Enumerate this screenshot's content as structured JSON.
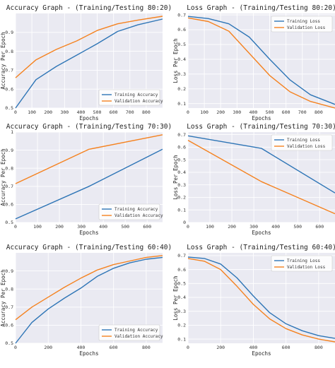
{
  "colors": {
    "training": "#2e75b6",
    "validation": "#f5821f",
    "panel_bg": "#eaeaf2",
    "grid": "#ffffff"
  },
  "chart_data": [
    {
      "type": "line",
      "title": "Accuracy Graph - (Training/Testing 80:20)",
      "xlabel": "Epochs",
      "ylabel": "Accuracy Per Epoch",
      "xlim": [
        0,
        900
      ],
      "ylim": [
        0.5,
        1.0
      ],
      "xticks": [
        0,
        100,
        200,
        300,
        400,
        500,
        600,
        700,
        800
      ],
      "yticks": [
        0.5,
        0.6,
        0.7,
        0.8,
        0.9
      ],
      "legend": "lower-right",
      "series": [
        {
          "name": "Training Accuracy",
          "color": "#2e75b6",
          "x": [
            0,
            125,
            250,
            375,
            500,
            625,
            750,
            900
          ],
          "y": [
            0.5,
            0.65,
            0.72,
            0.78,
            0.84,
            0.905,
            0.94,
            0.97
          ]
        },
        {
          "name": "Validation Accuracy",
          "color": "#f5821f",
          "x": [
            0,
            125,
            250,
            375,
            500,
            625,
            750,
            900
          ],
          "y": [
            0.66,
            0.755,
            0.81,
            0.855,
            0.91,
            0.945,
            0.965,
            0.985
          ]
        }
      ]
    },
    {
      "type": "line",
      "title": "Loss Graph - (Training/Testing 80:20)",
      "xlabel": "Epochs",
      "ylabel": "Loss Per Epoch",
      "xlim": [
        0,
        900
      ],
      "ylim": [
        0.07,
        0.71
      ],
      "xticks": [
        0,
        100,
        200,
        300,
        400,
        500,
        600,
        700,
        800
      ],
      "yticks": [
        0.1,
        0.2,
        0.3,
        0.4,
        0.5,
        0.6,
        0.7
      ],
      "legend": "top-right",
      "series": [
        {
          "name": "Training Loss",
          "color": "#2e75b6",
          "x": [
            0,
            125,
            250,
            375,
            500,
            625,
            750,
            900
          ],
          "y": [
            0.69,
            0.675,
            0.64,
            0.55,
            0.4,
            0.26,
            0.16,
            0.095
          ]
        },
        {
          "name": "Validation Loss",
          "color": "#f5821f",
          "x": [
            0,
            125,
            250,
            375,
            500,
            625,
            750,
            900
          ],
          "y": [
            0.68,
            0.655,
            0.59,
            0.44,
            0.29,
            0.18,
            0.115,
            0.07
          ]
        }
      ]
    },
    {
      "type": "line",
      "title": "Accuracy Graph - (Training/Testing 70:30)",
      "xlabel": "Epochs",
      "ylabel": "Accuracy Per Epoch",
      "xlim": [
        0,
        670
      ],
      "ylim": [
        0.5,
        1.0
      ],
      "xticks": [
        0,
        100,
        200,
        300,
        400,
        500,
        600
      ],
      "yticks": [
        0.5,
        0.6,
        0.7,
        0.8,
        0.9,
        1.0
      ],
      "legend": "lower-right",
      "series": [
        {
          "name": "Training Accuracy",
          "color": "#2e75b6",
          "x": [
            0,
            335,
            670
          ],
          "y": [
            0.52,
            0.7,
            0.905
          ]
        },
        {
          "name": "Validation Accuracy",
          "color": "#f5821f",
          "x": [
            0,
            335,
            670
          ],
          "y": [
            0.715,
            0.905,
            0.985
          ]
        }
      ]
    },
    {
      "type": "line",
      "title": "Loss Graph - (Training/Testing 70:30)",
      "xlabel": "Epochs",
      "ylabel": "Loss Per Epoch",
      "xlim": [
        0,
        670
      ],
      "ylim": [
        0.0,
        0.72
      ],
      "xticks": [
        0,
        100,
        200,
        300,
        400,
        500,
        600
      ],
      "yticks": [
        0.0,
        0.1,
        0.2,
        0.3,
        0.4,
        0.5,
        0.6,
        0.7
      ],
      "legend": "top-right",
      "series": [
        {
          "name": "Training Loss",
          "color": "#2e75b6",
          "x": [
            0,
            335,
            670
          ],
          "y": [
            0.69,
            0.59,
            0.235
          ]
        },
        {
          "name": "Validation Loss",
          "color": "#f5821f",
          "x": [
            0,
            335,
            670
          ],
          "y": [
            0.655,
            0.325,
            0.07
          ]
        }
      ]
    },
    {
      "type": "line",
      "title": "Accuracy Graph - (Training/Testing 60:40)",
      "xlabel": "Epochs",
      "ylabel": "Accuracy Per Epoch",
      "xlim": [
        0,
        900
      ],
      "ylim": [
        0.5,
        1.0
      ],
      "xticks": [
        0,
        200,
        400,
        600,
        800
      ],
      "yticks": [
        0.5,
        0.6,
        0.7,
        0.8,
        0.9
      ],
      "legend": "lower-right",
      "series": [
        {
          "name": "Training Accuracy",
          "color": "#2e75b6",
          "x": [
            0,
            100,
            200,
            300,
            400,
            500,
            600,
            700,
            800,
            900
          ],
          "y": [
            0.5,
            0.615,
            0.69,
            0.75,
            0.805,
            0.87,
            0.915,
            0.945,
            0.965,
            0.975
          ]
        },
        {
          "name": "Validation Accuracy",
          "color": "#f5821f",
          "x": [
            0,
            100,
            200,
            300,
            400,
            500,
            600,
            700,
            800,
            900
          ],
          "y": [
            0.63,
            0.7,
            0.755,
            0.81,
            0.86,
            0.905,
            0.935,
            0.955,
            0.975,
            0.985
          ]
        }
      ]
    },
    {
      "type": "line",
      "title": "Loss Graph - (Training/Testing 60:40)",
      "xlabel": "Epochs",
      "ylabel": "Loss Per Epoch",
      "xlim": [
        0,
        900
      ],
      "ylim": [
        0.07,
        0.72
      ],
      "xticks": [
        0,
        200,
        400,
        600,
        800
      ],
      "yticks": [
        0.1,
        0.2,
        0.3,
        0.4,
        0.5,
        0.6,
        0.7
      ],
      "legend": "top-right",
      "series": [
        {
          "name": "Training Loss",
          "color": "#2e75b6",
          "x": [
            0,
            100,
            200,
            300,
            400,
            500,
            600,
            700,
            800,
            900
          ],
          "y": [
            0.69,
            0.68,
            0.64,
            0.54,
            0.41,
            0.29,
            0.21,
            0.16,
            0.125,
            0.105
          ]
        },
        {
          "name": "Validation Loss",
          "color": "#f5821f",
          "x": [
            0,
            100,
            200,
            300,
            400,
            500,
            600,
            700,
            800,
            900
          ],
          "y": [
            0.68,
            0.66,
            0.6,
            0.48,
            0.35,
            0.245,
            0.175,
            0.13,
            0.1,
            0.08
          ]
        }
      ]
    }
  ]
}
